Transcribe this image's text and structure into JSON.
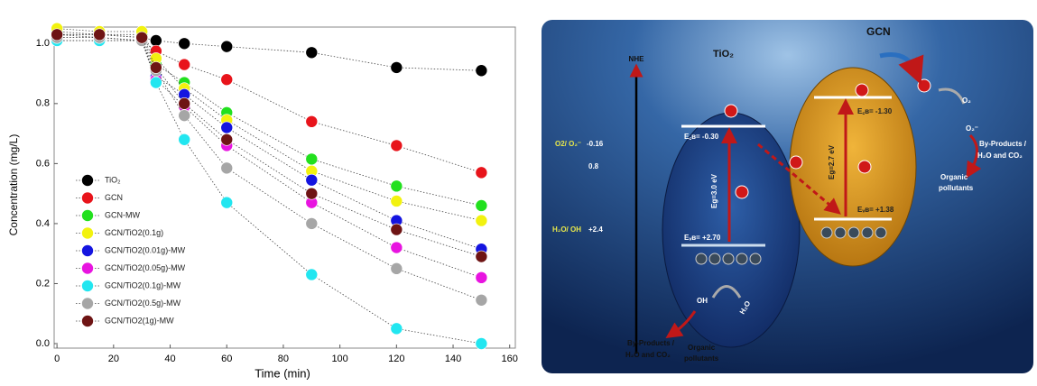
{
  "chart_data": {
    "type": "scatter",
    "xlabel": "Time (min)",
    "ylabel": "Concentration (mg/L)",
    "x": [
      0,
      15,
      30,
      35,
      45,
      60,
      90,
      120,
      150
    ],
    "series": [
      {
        "name": "TiO₂",
        "color": "#000000",
        "values": [
          1.03,
          1.03,
          1.02,
          1.01,
          1.0,
          0.99,
          0.97,
          0.92,
          0.91
        ]
      },
      {
        "name": "GCN",
        "color": "#e8141b",
        "values": [
          1.03,
          1.02,
          1.01,
          0.975,
          0.93,
          0.88,
          0.74,
          0.66,
          0.57
        ]
      },
      {
        "name": "GCN-MW",
        "color": "#22e01e",
        "values": [
          1.04,
          1.03,
          1.03,
          0.93,
          0.87,
          0.77,
          0.615,
          0.525,
          0.46
        ]
      },
      {
        "name": "GCN/TiO2(0.1g)",
        "color": "#f2f20f",
        "values": [
          1.05,
          1.04,
          1.04,
          0.95,
          0.85,
          0.745,
          0.575,
          0.475,
          0.41
        ]
      },
      {
        "name": "GCN/TiO2(0.01g)-MW",
        "color": "#1414e0",
        "values": [
          1.02,
          1.02,
          1.01,
          0.89,
          0.83,
          0.72,
          0.545,
          0.41,
          0.315
        ]
      },
      {
        "name": "GCN/TiO2(0.05g)-MW",
        "color": "#e814e0",
        "values": [
          1.01,
          1.01,
          1.01,
          0.88,
          0.79,
          0.66,
          0.47,
          0.32,
          0.22
        ]
      },
      {
        "name": "GCN/TiO2(0.1g)-MW",
        "color": "#22e6f0",
        "values": [
          1.01,
          1.01,
          1.01,
          0.87,
          0.68,
          0.47,
          0.23,
          0.05,
          0.0
        ]
      },
      {
        "name": "GCN/TiO2(0.5g)-MW",
        "color": "#a6a6a6",
        "values": [
          1.02,
          1.02,
          1.01,
          0.91,
          0.76,
          0.585,
          0.4,
          0.25,
          0.145
        ]
      },
      {
        "name": "GCN/TiO2(1g)-MW",
        "color": "#6e1414",
        "values": [
          1.03,
          1.03,
          1.02,
          0.92,
          0.8,
          0.68,
          0.5,
          0.38,
          0.29
        ]
      }
    ],
    "xlim": [
      -1,
      162
    ],
    "xticks": [
      0,
      20,
      40,
      60,
      80,
      100,
      120,
      140,
      160
    ],
    "ylim": [
      -0.015,
      1.055
    ],
    "yticks": [
      {
        "value": 0,
        "label": "0.0"
      },
      {
        "value": 0.2,
        "label": "0.2"
      },
      {
        "value": 0.4,
        "label": "0.4"
      },
      {
        "value": 0.6,
        "label": "0.6"
      },
      {
        "value": 0.8,
        "label": "0.8"
      },
      {
        "value": 1.0,
        "label": "1.0"
      }
    ],
    "legend": "lower left",
    "line_style": "dotted"
  },
  "diagram": {
    "axis_label": "NHE",
    "tio2": "TiO₂",
    "gcn": "GCN",
    "levels": [
      {
        "couple": "O2/ O₂⁻",
        "potential": "-0.16"
      },
      {
        "potential": "0.8"
      },
      {
        "couple": "H₂O/ OH",
        "potential": "+2.4"
      }
    ],
    "tio2_cb": "E꜀ʙ= -0.30",
    "tio2_gap": "Eg=3.0 eV",
    "tio2_vb": "Eᵥʙ= +2.70",
    "gcn_cb": "E꜀ʙ= -1.30",
    "gcn_gap": "Eg=2.7 eV",
    "gcn_vb": "Eᵥʙ= +1.38",
    "o2": "O₂",
    "o2_radical": "O₂⁻",
    "right_products": [
      "By-Products /",
      "H₂O and CO₂"
    ],
    "right_pollutants": [
      "Organic",
      "pollutants"
    ],
    "oh": "OH",
    "h2o": "H₂O",
    "bottom_products": [
      "By-Products /",
      "H₂O and CO₂"
    ],
    "bottom_pollutants": [
      "Organic",
      "pollutants"
    ]
  }
}
